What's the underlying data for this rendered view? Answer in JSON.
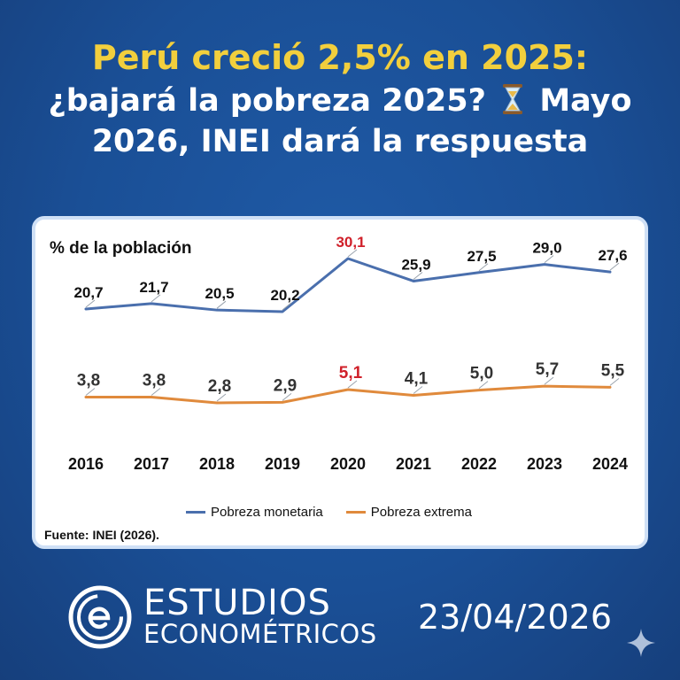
{
  "header": {
    "line1": "Perú creció 2,5% en 2025:",
    "line2_text": "¿bajará la pobreza 2025?",
    "line2_text_after": "Mayo",
    "line3": "2026, INEI dará la respuesta"
  },
  "chart_data": {
    "type": "line",
    "title": "",
    "ylabel": "% de la población",
    "categories": [
      "2016",
      "2017",
      "2018",
      "2019",
      "2020",
      "2021",
      "2022",
      "2023",
      "2024"
    ],
    "ylim": [
      0,
      32
    ],
    "grid": false,
    "legend_position": "bottom",
    "series": [
      {
        "name": "Pobreza monetaria",
        "color": "#4a6fad",
        "values": [
          20.7,
          21.7,
          20.5,
          20.2,
          30.1,
          25.9,
          27.5,
          29.0,
          27.6
        ],
        "labels": [
          "20,7",
          "21,7",
          "20,5",
          "20,2",
          "30,1",
          "25,9",
          "27,5",
          "29,0",
          "27,6"
        ]
      },
      {
        "name": "Pobreza extrema",
        "color": "#e08a3c",
        "values": [
          3.8,
          3.8,
          2.8,
          2.9,
          5.1,
          4.1,
          5.0,
          5.7,
          5.5
        ],
        "labels": [
          "3,8",
          "3,8",
          "2,8",
          "2,9",
          "5,1",
          "4,1",
          "5,0",
          "5,7",
          "5,5"
        ]
      }
    ],
    "highlight_category": "2020",
    "highlight_color": "#d0202a",
    "source": "Fuente: INEI (2026)."
  },
  "footer": {
    "brand_line1": "ESTUDIOS",
    "brand_line2": "ECONOMÉTRICOS",
    "date": "23/04/2026"
  },
  "icons": [
    "hourglass-icon",
    "estudios-logo-icon",
    "sparkle-icon"
  ]
}
